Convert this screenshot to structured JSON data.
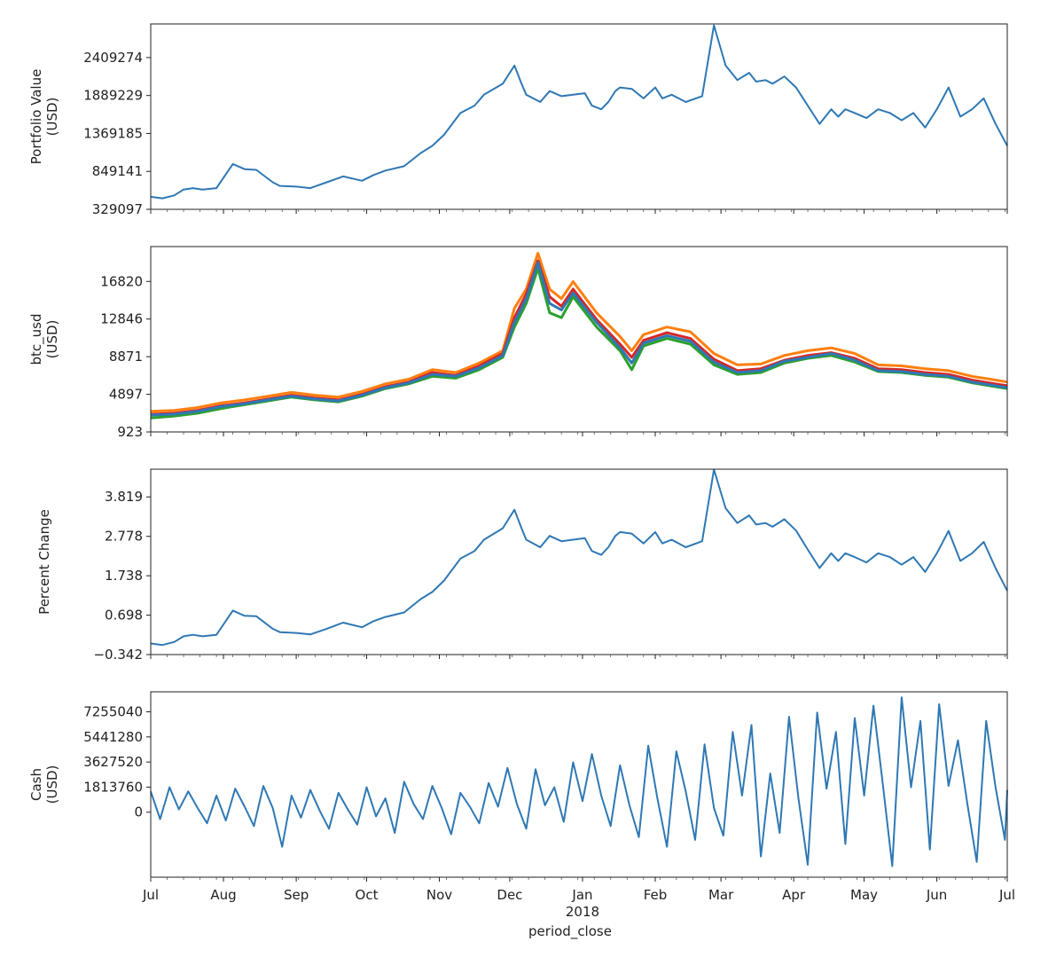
{
  "chart_data": [
    {
      "type": "line",
      "ylabel": [
        "Portfolio Value",
        "(USD)"
      ],
      "yticks": [
        "329097",
        "849141",
        "1369185",
        "1889229",
        "2409274"
      ],
      "ytick_values": [
        329097,
        849141,
        1369185,
        1889229,
        2409274
      ],
      "ylim": [
        329097,
        2870000
      ],
      "series": [
        {
          "color": "#2f78b4",
          "x": [
            0,
            5,
            10,
            14,
            18,
            22,
            28,
            35,
            40,
            45,
            52,
            55,
            62,
            68,
            75,
            82,
            90,
            95,
            100,
            108,
            115,
            120,
            125,
            132,
            138,
            142,
            150,
            155,
            158,
            160,
            163,
            166,
            170,
            175,
            180,
            185,
            188,
            192,
            195,
            198,
            200,
            205,
            210,
            215,
            218,
            222,
            228,
            235,
            240,
            245,
            250,
            255,
            258,
            262,
            265,
            270,
            275,
            280,
            285,
            290,
            293,
            296,
            300,
            305,
            310,
            315,
            320,
            325,
            330,
            335,
            340,
            345,
            350,
            355,
            360,
            365
          ],
          "y": [
            500000,
            480000,
            520000,
            600000,
            620000,
            600000,
            620000,
            950000,
            880000,
            870000,
            700000,
            650000,
            640000,
            620000,
            700000,
            780000,
            720000,
            800000,
            860000,
            920000,
            1100000,
            1200000,
            1350000,
            1650000,
            1750000,
            1900000,
            2050000,
            2300000,
            2050000,
            1900000,
            1850000,
            1800000,
            1950000,
            1880000,
            1900000,
            1920000,
            1750000,
            1700000,
            1800000,
            1950000,
            2000000,
            1980000,
            1850000,
            2000000,
            1850000,
            1900000,
            1800000,
            1880000,
            2850000,
            2300000,
            2100000,
            2200000,
            2080000,
            2100000,
            2050000,
            2150000,
            2000000,
            1750000,
            1500000,
            1700000,
            1600000,
            1700000,
            1650000,
            1580000,
            1700000,
            1650000,
            1550000,
            1650000,
            1450000,
            1700000,
            2000000,
            1600000,
            1700000,
            1850000,
            1500000,
            1200000
          ]
        }
      ]
    },
    {
      "type": "line",
      "ylabel": [
        "btc_usd",
        "(USD)"
      ],
      "yticks": [
        "923",
        "4897",
        "8871",
        "12846",
        "16820"
      ],
      "ytick_values": [
        923,
        4897,
        8871,
        12846,
        16820
      ],
      "ylim": [
        923,
        20500
      ],
      "series": [
        {
          "color": "#ff7f0e",
          "x": [
            0,
            10,
            20,
            30,
            40,
            50,
            60,
            70,
            80,
            90,
            100,
            110,
            120,
            130,
            140,
            150,
            155,
            160,
            165,
            170,
            175,
            180,
            190,
            200,
            205,
            210,
            220,
            230,
            240,
            250,
            260,
            270,
            280,
            290,
            300,
            310,
            320,
            330,
            340,
            350,
            360,
            365
          ],
          "y": [
            3100,
            3200,
            3500,
            4000,
            4300,
            4700,
            5100,
            4800,
            4600,
            5200,
            6000,
            6500,
            7500,
            7200,
            8200,
            9500,
            14000,
            16000,
            19800,
            16000,
            15000,
            16800,
            13500,
            11000,
            9500,
            11200,
            12000,
            11500,
            9200,
            8000,
            8100,
            9000,
            9500,
            9800,
            9200,
            8000,
            7900,
            7600,
            7400,
            6800,
            6400,
            6200
          ]
        },
        {
          "color": "#d62728",
          "x": [
            0,
            10,
            20,
            30,
            40,
            50,
            60,
            70,
            80,
            90,
            100,
            110,
            120,
            130,
            140,
            150,
            155,
            160,
            165,
            170,
            175,
            180,
            190,
            200,
            205,
            210,
            220,
            230,
            240,
            250,
            260,
            270,
            280,
            290,
            300,
            310,
            320,
            330,
            340,
            350,
            360,
            365
          ],
          "y": [
            2800,
            2900,
            3200,
            3700,
            4000,
            4400,
            4800,
            4500,
            4300,
            4900,
            5700,
            6200,
            7200,
            6900,
            7900,
            9200,
            13000,
            15500,
            19000,
            15200,
            14200,
            16000,
            12800,
            10200,
            8800,
            10600,
            11400,
            10800,
            8600,
            7400,
            7600,
            8500,
            9000,
            9300,
            8700,
            7600,
            7500,
            7200,
            7000,
            6400,
            6000,
            5800
          ]
        },
        {
          "color": "#2ca02c",
          "x": [
            0,
            10,
            20,
            30,
            40,
            50,
            60,
            70,
            80,
            90,
            100,
            110,
            120,
            130,
            140,
            150,
            155,
            160,
            165,
            170,
            175,
            180,
            190,
            200,
            205,
            210,
            220,
            230,
            240,
            250,
            260,
            270,
            280,
            290,
            300,
            310,
            320,
            330,
            340,
            350,
            360,
            365
          ],
          "y": [
            2400,
            2600,
            2900,
            3400,
            3800,
            4200,
            4600,
            4300,
            4100,
            4700,
            5500,
            6000,
            6800,
            6600,
            7500,
            8800,
            12000,
            14500,
            18200,
            13500,
            13000,
            15200,
            12000,
            9500,
            7500,
            10000,
            10800,
            10200,
            8000,
            7000,
            7200,
            8200,
            8700,
            9000,
            8300,
            7300,
            7200,
            6900,
            6700,
            6100,
            5700,
            5500
          ]
        },
        {
          "color": "#2f78b4",
          "x": [
            0,
            10,
            20,
            30,
            40,
            50,
            60,
            70,
            80,
            90,
            100,
            110,
            120,
            130,
            140,
            150,
            155,
            160,
            165,
            170,
            175,
            180,
            190,
            200,
            205,
            210,
            220,
            230,
            240,
            250,
            260,
            270,
            280,
            290,
            300,
            310,
            320,
            330,
            340,
            350,
            360,
            365
          ],
          "y": [
            2700,
            2800,
            3100,
            3600,
            3900,
            4300,
            4700,
            4400,
            4200,
            4800,
            5600,
            6100,
            7000,
            6800,
            7700,
            9000,
            12500,
            15000,
            18800,
            14500,
            13800,
            15600,
            12500,
            9800,
            8200,
            10300,
            11100,
            10500,
            8300,
            7200,
            7400,
            8400,
            8800,
            9200,
            8500,
            7400,
            7300,
            7000,
            6800,
            6200,
            5800,
            5600
          ]
        }
      ]
    },
    {
      "type": "line",
      "ylabel": [
        "Percent Change"
      ],
      "yticks": [
        "−0.342",
        "0.698",
        "1.738",
        "2.778",
        "3.819"
      ],
      "ytick_values": [
        -0.342,
        0.698,
        1.738,
        2.778,
        3.819
      ],
      "ylim": [
        -0.342,
        4.55
      ],
      "series": [
        {
          "color": "#2f78b4",
          "x": [
            0,
            5,
            10,
            14,
            18,
            22,
            28,
            35,
            40,
            45,
            52,
            55,
            62,
            68,
            75,
            82,
            90,
            95,
            100,
            108,
            115,
            120,
            125,
            132,
            138,
            142,
            150,
            155,
            158,
            160,
            163,
            166,
            170,
            175,
            180,
            185,
            188,
            192,
            195,
            198,
            200,
            205,
            210,
            215,
            218,
            222,
            228,
            235,
            240,
            245,
            250,
            255,
            258,
            262,
            265,
            270,
            275,
            280,
            285,
            290,
            293,
            296,
            300,
            305,
            310,
            315,
            320,
            325,
            330,
            335,
            340,
            345,
            350,
            355,
            360,
            365
          ],
          "y": [
            -0.05,
            -0.09,
            -0.01,
            0.14,
            0.18,
            0.14,
            0.18,
            0.82,
            0.68,
            0.67,
            0.34,
            0.25,
            0.23,
            0.19,
            0.34,
            0.5,
            0.38,
            0.54,
            0.65,
            0.77,
            1.12,
            1.31,
            1.61,
            2.19,
            2.39,
            2.69,
            2.99,
            3.48,
            2.99,
            2.69,
            2.59,
            2.49,
            2.79,
            2.65,
            2.69,
            2.73,
            2.39,
            2.29,
            2.49,
            2.79,
            2.89,
            2.85,
            2.59,
            2.89,
            2.59,
            2.69,
            2.49,
            2.65,
            4.54,
            3.52,
            3.13,
            3.33,
            3.09,
            3.13,
            3.03,
            3.23,
            2.93,
            2.43,
            1.94,
            2.33,
            2.13,
            2.33,
            2.23,
            2.09,
            2.33,
            2.23,
            2.03,
            2.23,
            1.84,
            2.33,
            2.92,
            2.13,
            2.33,
            2.63,
            1.94,
            1.34
          ]
        }
      ]
    },
    {
      "type": "line",
      "ylabel": [
        "Cash",
        "(USD)"
      ],
      "yticks": [
        "0",
        "1813760",
        "3627520",
        "5441280",
        "7255040"
      ],
      "ytick_values": [
        0,
        1813760,
        3627520,
        5441280,
        7255040
      ],
      "ylim": [
        -4700000,
        8700000
      ],
      "series": [
        {
          "color": "#2f78b4",
          "x": [
            0,
            4,
            8,
            12,
            16,
            20,
            24,
            28,
            32,
            36,
            40,
            44,
            48,
            52,
            56,
            60,
            64,
            68,
            72,
            76,
            80,
            84,
            88,
            92,
            96,
            100,
            104,
            108,
            112,
            116,
            120,
            124,
            128,
            132,
            136,
            140,
            144,
            148,
            152,
            156,
            160,
            164,
            168,
            172,
            176,
            180,
            184,
            188,
            192,
            196,
            200,
            204,
            208,
            212,
            216,
            220,
            224,
            228,
            232,
            236,
            240,
            244,
            248,
            252,
            256,
            260,
            264,
            268,
            272,
            276,
            280,
            284,
            288,
            292,
            296,
            300,
            304,
            308,
            312,
            316,
            320,
            324,
            328,
            332,
            336,
            340,
            344,
            348,
            352,
            356,
            360,
            364,
            365
          ],
          "y": [
            1500000,
            -500000,
            1800000,
            200000,
            1500000,
            300000,
            -800000,
            1200000,
            -600000,
            1700000,
            400000,
            -1000000,
            1900000,
            300000,
            -2500000,
            1200000,
            -400000,
            1600000,
            100000,
            -1200000,
            1400000,
            200000,
            -900000,
            1800000,
            -300000,
            1000000,
            -1500000,
            2200000,
            600000,
            -500000,
            1900000,
            300000,
            -1600000,
            1400000,
            400000,
            -800000,
            2100000,
            400000,
            3200000,
            600000,
            -1200000,
            3100000,
            500000,
            1800000,
            -700000,
            3600000,
            800000,
            4200000,
            1200000,
            -1000000,
            3400000,
            500000,
            -1800000,
            4800000,
            900000,
            -2500000,
            4400000,
            1500000,
            -2000000,
            4900000,
            300000,
            -1700000,
            5800000,
            1200000,
            6300000,
            -3200000,
            2800000,
            -1500000,
            6900000,
            1000000,
            -3800000,
            7200000,
            1700000,
            5800000,
            -2300000,
            6800000,
            1200000,
            7700000,
            2000000,
            -3900000,
            8300000,
            1800000,
            6600000,
            -2700000,
            7800000,
            1900000,
            5200000,
            600000,
            -3600000,
            6600000,
            1800000,
            -2000000,
            1600000
          ]
        }
      ]
    }
  ],
  "shared_x": {
    "ticks": [
      "Jul",
      "Aug",
      "Sep",
      "Oct",
      "Nov",
      "Dec",
      "Jan",
      "Feb",
      "Mar",
      "Apr",
      "May",
      "Jun",
      "Jul"
    ],
    "tick_days": [
      0,
      31,
      62,
      92,
      123,
      153,
      184,
      215,
      243,
      274,
      304,
      335,
      365
    ],
    "year_label": "2018",
    "xlabel": "period_close",
    "range_days": [
      0,
      365
    ]
  }
}
